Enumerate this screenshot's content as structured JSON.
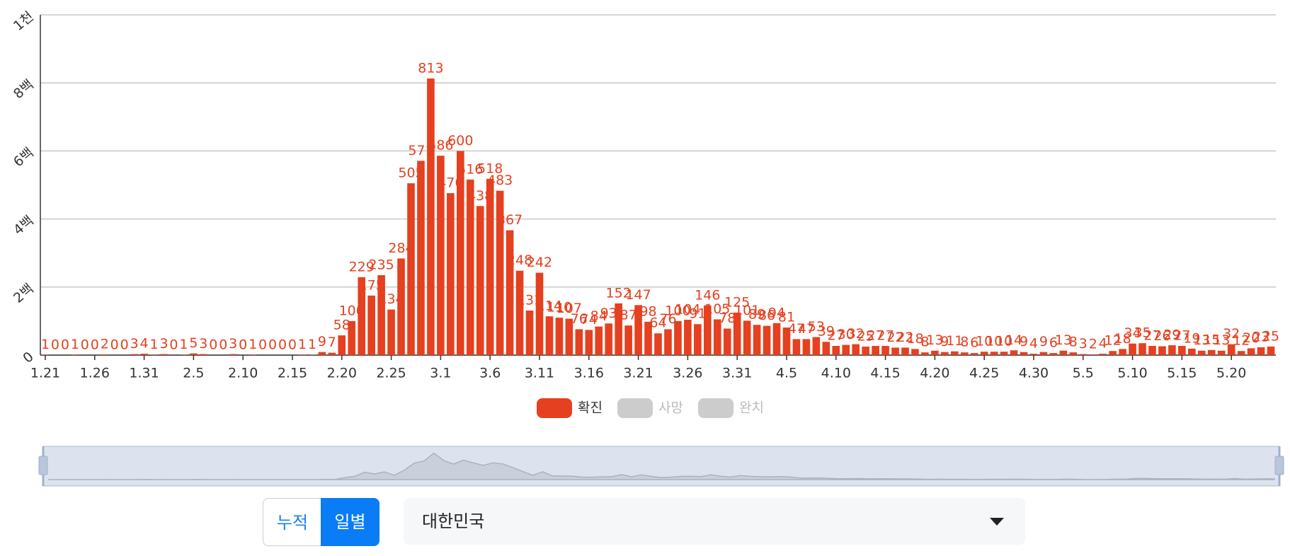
{
  "chart_data": {
    "type": "bar",
    "categories": [
      "1.21",
      null,
      null,
      null,
      null,
      "1.26",
      null,
      null,
      null,
      null,
      "1.31",
      null,
      null,
      null,
      null,
      "2.5",
      null,
      null,
      null,
      null,
      "2.10",
      null,
      null,
      null,
      null,
      "2.15",
      null,
      null,
      null,
      null,
      "2.20",
      null,
      null,
      null,
      null,
      "2.25",
      null,
      null,
      null,
      null,
      "3.1",
      null,
      null,
      null,
      null,
      "3.6",
      null,
      null,
      null,
      null,
      "3.11",
      null,
      null,
      null,
      null,
      "3.16",
      null,
      null,
      null,
      null,
      "3.21",
      null,
      null,
      null,
      null,
      "3.26",
      null,
      null,
      null,
      null,
      "3.31",
      null,
      null,
      null,
      null,
      "4.5",
      null,
      null,
      null,
      null,
      "4.10",
      null,
      null,
      null,
      null,
      "4.15",
      null,
      null,
      null,
      null,
      "4.20",
      null,
      null,
      null,
      null,
      "4.25",
      null,
      null,
      null,
      null,
      "4.30",
      null,
      null,
      null,
      null,
      "5.5",
      null,
      null,
      null,
      null,
      "5.10",
      null,
      null,
      null,
      null,
      "5.15",
      null,
      null,
      null,
      null,
      "5.20",
      null,
      null,
      null,
      null
    ],
    "series": [
      {
        "name": "확진",
        "color": "#e5401f",
        "active": true,
        "values": [
          1,
          0,
          0,
          1,
          0,
          0,
          2,
          0,
          0,
          3,
          4,
          1,
          3,
          0,
          1,
          5,
          3,
          0,
          0,
          3,
          0,
          1,
          0,
          0,
          0,
          0,
          1,
          1,
          9,
          7,
          58,
          100,
          229,
          175,
          235,
          134,
          284,
          505,
          571,
          813,
          586,
          476,
          600,
          516,
          438,
          518,
          483,
          367,
          248,
          131,
          242,
          114,
          110,
          107,
          76,
          74,
          84,
          93,
          152,
          87,
          147,
          98,
          64,
          76,
          100,
          104,
          91,
          146,
          105,
          78,
          125,
          101,
          89,
          86,
          94,
          81,
          47,
          47,
          53,
          39,
          27,
          30,
          32,
          25,
          27,
          27,
          22,
          22,
          18,
          8,
          13,
          9,
          11,
          8,
          6,
          10,
          10,
          10,
          14,
          9,
          4,
          9,
          6,
          13,
          8,
          3,
          2,
          4,
          12,
          18,
          34,
          35,
          27,
          26,
          29,
          27,
          19,
          13,
          15,
          13,
          32,
          12,
          20,
          23,
          25
        ]
      },
      {
        "name": "사망",
        "color": "#cccccc",
        "active": false
      },
      {
        "name": "완치",
        "color": "#cccccc",
        "active": false
      }
    ],
    "ylim": [
      0,
      1000
    ],
    "yticks": [
      0,
      {
        "value": 200,
        "label": "2백"
      },
      {
        "value": 400,
        "label": "4백"
      },
      {
        "value": 600,
        "label": "6백"
      },
      {
        "value": 800,
        "label": "8백"
      },
      {
        "value": 1000,
        "label": "1천"
      }
    ],
    "grid": true,
    "legend": "bottom"
  },
  "controls": {
    "modes": [
      "누적",
      "일별"
    ],
    "selected": "일별",
    "region": "대한민국"
  }
}
